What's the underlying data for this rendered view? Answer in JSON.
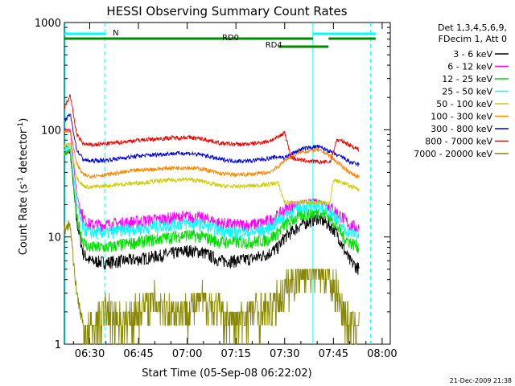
{
  "chart_data": {
    "type": "line",
    "title": "HESSI Observing Summary Count Rates",
    "xlabel": "Start Time (05-Sep-08 06:22:02)",
    "ylabel_main": "Count Rate (s",
    "ylabel_sup1": "-1",
    "ylabel_mid": " detector",
    "ylabel_sup2": "-1",
    "ylabel_end": ")",
    "x_range_minutes": [
      "06:22",
      "08:02"
    ],
    "ylim": [
      1,
      1000
    ],
    "y_scale": "log",
    "x_ticks": [
      {
        "label": "06:30",
        "t": 30
      },
      {
        "label": "06:45",
        "t": 45
      },
      {
        "label": "07:00",
        "t": 60
      },
      {
        "label": "07:15",
        "t": 75
      },
      {
        "label": "07:30",
        "t": 90
      },
      {
        "label": "07:45",
        "t": 105
      },
      {
        "label": "08:00",
        "t": 120
      }
    ],
    "y_ticks": [
      {
        "label": "1",
        "v": 1
      },
      {
        "label": "10",
        "v": 10
      },
      {
        "label": "100",
        "v": 100
      },
      {
        "label": "1000",
        "v": 1000
      }
    ],
    "legend_header": [
      "Det 1,3,4,5,6,9,",
      "FDecim 1, Att 0"
    ],
    "series": [
      {
        "name": "3 - 6 keV",
        "color": "#000000",
        "points": [
          [
            22.2,
            60
          ],
          [
            24,
            62
          ],
          [
            26,
            14
          ],
          [
            28,
            7
          ],
          [
            30,
            6
          ],
          [
            35,
            5.8
          ],
          [
            45,
            6.2
          ],
          [
            55,
            7
          ],
          [
            60,
            7.5
          ],
          [
            65,
            7.2
          ],
          [
            70,
            6
          ],
          [
            75,
            6
          ],
          [
            80,
            6.3
          ],
          [
            85,
            7
          ],
          [
            88,
            8
          ],
          [
            90,
            10
          ],
          [
            95,
            13
          ],
          [
            100,
            15
          ],
          [
            103,
            13.5
          ],
          [
            106,
            11
          ],
          [
            108,
            8
          ],
          [
            110,
            6
          ],
          [
            113,
            5
          ]
        ]
      },
      {
        "name": "6 - 12 keV",
        "color": "#ff00ff",
        "points": [
          [
            22.2,
            100
          ],
          [
            24,
            100
          ],
          [
            26,
            25
          ],
          [
            28,
            15
          ],
          [
            30,
            13
          ],
          [
            35,
            13
          ],
          [
            45,
            14
          ],
          [
            55,
            15
          ],
          [
            60,
            15.5
          ],
          [
            65,
            15
          ],
          [
            70,
            13.5
          ],
          [
            75,
            13
          ],
          [
            80,
            13
          ],
          [
            85,
            14
          ],
          [
            88,
            16
          ],
          [
            90,
            18
          ],
          [
            95,
            21
          ],
          [
            100,
            22
          ],
          [
            103,
            20
          ],
          [
            106,
            17
          ],
          [
            108,
            15
          ],
          [
            110,
            13
          ],
          [
            113,
            12
          ]
        ]
      },
      {
        "name": "12 - 25 keV",
        "color": "#00dd00",
        "points": [
          [
            22.2,
            60
          ],
          [
            24,
            65
          ],
          [
            26,
            15
          ],
          [
            28,
            9
          ],
          [
            30,
            8
          ],
          [
            35,
            8
          ],
          [
            45,
            9
          ],
          [
            55,
            10
          ],
          [
            60,
            10.5
          ],
          [
            65,
            10
          ],
          [
            70,
            9
          ],
          [
            75,
            9
          ],
          [
            80,
            9
          ],
          [
            85,
            9.5
          ],
          [
            88,
            11
          ],
          [
            90,
            13
          ],
          [
            95,
            16
          ],
          [
            100,
            17
          ],
          [
            103,
            16
          ],
          [
            106,
            13
          ],
          [
            108,
            10
          ],
          [
            110,
            9
          ],
          [
            113,
            8
          ]
        ]
      },
      {
        "name": "25 - 50 keV",
        "color": "#00ffff",
        "points": [
          [
            22.2,
            65
          ],
          [
            24,
            70
          ],
          [
            26,
            20
          ],
          [
            28,
            12
          ],
          [
            30,
            11
          ],
          [
            35,
            11
          ],
          [
            45,
            12
          ],
          [
            55,
            13
          ],
          [
            60,
            13.5
          ],
          [
            65,
            13
          ],
          [
            70,
            11.5
          ],
          [
            75,
            11
          ],
          [
            80,
            11
          ],
          [
            85,
            12
          ],
          [
            88,
            14
          ],
          [
            90,
            16
          ],
          [
            95,
            19
          ],
          [
            100,
            20
          ],
          [
            103,
            18.5
          ],
          [
            106,
            15
          ],
          [
            108,
            12
          ],
          [
            110,
            11
          ],
          [
            113,
            10.5
          ]
        ]
      },
      {
        "name": "50 - 100 keV",
        "color": "#cccc00",
        "points": [
          [
            22.2,
            70
          ],
          [
            24,
            75
          ],
          [
            26,
            36
          ],
          [
            28,
            30
          ],
          [
            30,
            29
          ],
          [
            35,
            30
          ],
          [
            45,
            32
          ],
          [
            55,
            34
          ],
          [
            60,
            34.5
          ],
          [
            65,
            33
          ],
          [
            70,
            30
          ],
          [
            75,
            29.5
          ],
          [
            80,
            30
          ],
          [
            85,
            31
          ],
          [
            88,
            32
          ],
          [
            90,
            21
          ],
          [
            95,
            21
          ],
          [
            100,
            21
          ],
          [
            104,
            21
          ],
          [
            105,
            34
          ],
          [
            108,
            32
          ],
          [
            110,
            30
          ],
          [
            113,
            28
          ]
        ]
      },
      {
        "name": "100 - 300 keV",
        "color": "#ff8800",
        "points": [
          [
            22.2,
            95
          ],
          [
            24,
            100
          ],
          [
            26,
            48
          ],
          [
            28,
            38
          ],
          [
            30,
            37
          ],
          [
            35,
            38
          ],
          [
            45,
            42
          ],
          [
            55,
            44
          ],
          [
            60,
            44.5
          ],
          [
            65,
            43
          ],
          [
            70,
            39
          ],
          [
            75,
            38
          ],
          [
            80,
            38.5
          ],
          [
            85,
            40
          ],
          [
            88,
            45
          ],
          [
            90,
            52
          ],
          [
            95,
            62
          ],
          [
            100,
            65
          ],
          [
            103,
            60
          ],
          [
            106,
            50
          ],
          [
            108,
            45
          ],
          [
            110,
            40
          ],
          [
            113,
            36
          ]
        ]
      },
      {
        "name": "300 - 800 keV",
        "color": "#0000dd",
        "points": [
          [
            22.2,
            120
          ],
          [
            24,
            140
          ],
          [
            26,
            65
          ],
          [
            28,
            53
          ],
          [
            30,
            51
          ],
          [
            35,
            52
          ],
          [
            45,
            57
          ],
          [
            55,
            60
          ],
          [
            60,
            60.5
          ],
          [
            65,
            58
          ],
          [
            70,
            53
          ],
          [
            75,
            51
          ],
          [
            80,
            51.5
          ],
          [
            85,
            54
          ],
          [
            88,
            56
          ],
          [
            90,
            55
          ],
          [
            95,
            66
          ],
          [
            100,
            70
          ],
          [
            103,
            65
          ],
          [
            106,
            58
          ],
          [
            108,
            55
          ],
          [
            110,
            50
          ],
          [
            113,
            47
          ]
        ]
      },
      {
        "name": "800 - 7000 keV",
        "color": "#ee0000",
        "points": [
          [
            22.2,
            160
          ],
          [
            24,
            210
          ],
          [
            26,
            90
          ],
          [
            28,
            74
          ],
          [
            30,
            72
          ],
          [
            35,
            74
          ],
          [
            45,
            80
          ],
          [
            55,
            84
          ],
          [
            60,
            85
          ],
          [
            65,
            82
          ],
          [
            70,
            75
          ],
          [
            75,
            73
          ],
          [
            80,
            74
          ],
          [
            85,
            78
          ],
          [
            88,
            85
          ],
          [
            90,
            95
          ],
          [
            92,
            55
          ],
          [
            95,
            52
          ],
          [
            100,
            50
          ],
          [
            104,
            50
          ],
          [
            106,
            80
          ],
          [
            108,
            78
          ],
          [
            110,
            72
          ],
          [
            113,
            65
          ]
        ]
      },
      {
        "name": "7000 - 20000 keV",
        "color": "#888800",
        "points": [
          [
            22.2,
            12
          ],
          [
            24,
            13
          ],
          [
            25,
            6
          ],
          [
            26,
            3
          ],
          [
            28,
            1.5
          ],
          [
            30,
            1.2
          ],
          [
            35,
            2
          ],
          [
            40,
            1.5
          ],
          [
            45,
            2
          ],
          [
            50,
            2.5
          ],
          [
            55,
            2
          ],
          [
            60,
            2
          ],
          [
            65,
            2.5
          ],
          [
            70,
            2
          ],
          [
            75,
            1.5
          ],
          [
            80,
            2
          ],
          [
            85,
            2
          ],
          [
            88,
            2.5
          ],
          [
            90,
            3
          ],
          [
            95,
            5
          ],
          [
            100,
            5.2
          ],
          [
            103,
            4.5
          ],
          [
            106,
            3
          ],
          [
            108,
            2
          ],
          [
            110,
            1.5
          ],
          [
            113,
            1.5
          ]
        ]
      }
    ],
    "state_bars": [
      {
        "label": "N",
        "color": "#00ffff",
        "segments": [
          [
            22.2,
            35
          ]
        ]
      },
      {
        "label": "",
        "color": "#00ffff",
        "segments": [
          [
            98.7,
            118
          ]
        ]
      },
      {
        "label": "RD0",
        "color": "#008800",
        "segments": [
          [
            22.2,
            98.7
          ],
          [
            103.5,
            118
          ]
        ]
      },
      {
        "label": "RD4",
        "color": "#008800",
        "segments": [
          [
            88,
            103.5
          ]
        ]
      }
    ],
    "vertical_lines": [
      {
        "t": 22.4,
        "style": "solid"
      },
      {
        "t": 34.6,
        "style": "dashed"
      },
      {
        "t": 98.7,
        "style": "solid"
      },
      {
        "t": 116.4,
        "style": "dashed"
      }
    ]
  },
  "footer_timestamp": "21-Dec-2009 21:38"
}
